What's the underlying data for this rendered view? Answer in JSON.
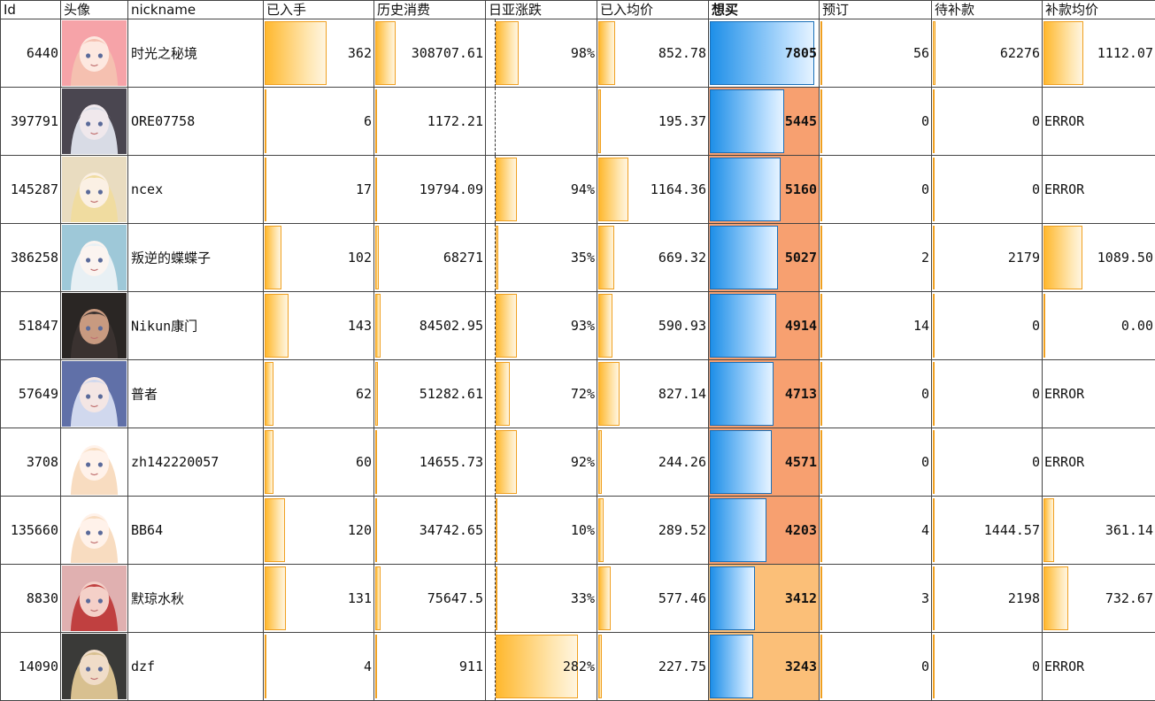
{
  "columns": [
    "Id",
    "头像",
    "nickname",
    "已入手",
    "历史消费",
    "日亚涨跌",
    "已入均价",
    "想买",
    "预订",
    "待补款",
    "补款均价"
  ],
  "rows": [
    {
      "id": "6440",
      "nickname": "时光之秘境",
      "owned": "362",
      "owned_pct": 0.58,
      "history": "308707.61",
      "history_pct": 0.2,
      "jpn": "98%",
      "jpn_pct": 0.29,
      "avg": "852.78",
      "avg_pct": 0.17,
      "want": "7805",
      "want_pct": 0.97,
      "want_bg": "#ffffff",
      "pre": "56",
      "pre_pct": 0.02,
      "due": "62276",
      "due_pct": 0.04,
      "davg": "1112.07",
      "davg_pct": 0.37
    },
    {
      "id": "397791",
      "nickname": "ORE07758",
      "owned": "6",
      "owned_pct": 0.01,
      "history": "1172.21",
      "history_pct": 0.01,
      "jpn": "",
      "jpn_pct": 0,
      "avg": "195.37",
      "avg_pct": 0.04,
      "want": "5445",
      "want_pct": 0.69,
      "want_bg": "#f7a070",
      "pre": "0",
      "pre_pct": 0,
      "due": "0",
      "due_pct": 0,
      "davg": "ERROR",
      "davg_pct": 0
    },
    {
      "id": "145287",
      "nickname": "ncex",
      "owned": "17",
      "owned_pct": 0.02,
      "history": "19794.09",
      "history_pct": 0.02,
      "jpn": "94%",
      "jpn_pct": 0.27,
      "avg": "1164.36",
      "avg_pct": 0.29,
      "want": "5160",
      "want_pct": 0.66,
      "want_bg": "#f7a070",
      "pre": "0",
      "pre_pct": 0,
      "due": "0",
      "due_pct": 0,
      "davg": "ERROR",
      "davg_pct": 0
    },
    {
      "id": "386258",
      "nickname": "叛逆的蝶蝶子",
      "owned": "102",
      "owned_pct": 0.17,
      "history": "68271",
      "history_pct": 0.05,
      "jpn": "35%",
      "jpn_pct": 0.1,
      "avg": "669.32",
      "avg_pct": 0.16,
      "want": "5027",
      "want_pct": 0.64,
      "want_bg": "#f7a070",
      "pre": "2",
      "pre_pct": 0,
      "due": "2179",
      "due_pct": 0,
      "davg": "1089.50",
      "davg_pct": 0.36
    },
    {
      "id": "51847",
      "nickname": "Nikun康门",
      "owned": "143",
      "owned_pct": 0.23,
      "history": "84502.95",
      "history_pct": 0.06,
      "jpn": "93%",
      "jpn_pct": 0.27,
      "avg": "590.93",
      "avg_pct": 0.14,
      "want": "4914",
      "want_pct": 0.62,
      "want_bg": "#f7a070",
      "pre": "14",
      "pre_pct": 0.01,
      "due": "0",
      "due_pct": 0,
      "davg": "0.00",
      "davg_pct": 0
    },
    {
      "id": "57649",
      "nickname": "普者",
      "owned": "62",
      "owned_pct": 0.1,
      "history": "51282.61",
      "history_pct": 0.04,
      "jpn": "72%",
      "jpn_pct": 0.21,
      "avg": "827.14",
      "avg_pct": 0.21,
      "want": "4713",
      "want_pct": 0.6,
      "want_bg": "#f7a070",
      "pre": "0",
      "pre_pct": 0,
      "due": "0",
      "due_pct": 0,
      "davg": "ERROR",
      "davg_pct": 0
    },
    {
      "id": "3708",
      "nickname": "zh142220057",
      "owned": "60",
      "owned_pct": 0.1,
      "history": "14655.73",
      "history_pct": 0.01,
      "jpn": "92%",
      "jpn_pct": 0.27,
      "avg": "244.26",
      "avg_pct": 0.05,
      "want": "4571",
      "want_pct": 0.58,
      "want_bg": "#f7a070",
      "pre": "0",
      "pre_pct": 0,
      "due": "0",
      "due_pct": 0,
      "davg": "ERROR",
      "davg_pct": 0
    },
    {
      "id": "135660",
      "nickname": "BB64",
      "owned": "120",
      "owned_pct": 0.2,
      "history": "34742.65",
      "history_pct": 0.03,
      "jpn": "10%",
      "jpn_pct": 0.02,
      "avg": "289.52",
      "avg_pct": 0.06,
      "want": "4203",
      "want_pct": 0.53,
      "want_bg": "#f7a070",
      "pre": "4",
      "pre_pct": 0,
      "due": "1444.57",
      "due_pct": 0,
      "davg": "361.14",
      "davg_pct": 0.11
    },
    {
      "id": "8830",
      "nickname": "默琼水秋",
      "owned": "131",
      "owned_pct": 0.21,
      "history": "75647.5",
      "history_pct": 0.06,
      "jpn": "33%",
      "jpn_pct": 0.09,
      "avg": "577.46",
      "avg_pct": 0.13,
      "want": "3412",
      "want_pct": 0.43,
      "want_bg": "#fbbf78",
      "pre": "3",
      "pre_pct": 0,
      "due": "2198",
      "due_pct": 0,
      "davg": "732.67",
      "davg_pct": 0.24
    },
    {
      "id": "14090",
      "nickname": "dzf",
      "owned": "4",
      "owned_pct": 0.01,
      "history": "911",
      "history_pct": 0.01,
      "jpn": "282%",
      "jpn_pct": 0.82,
      "avg": "227.75",
      "avg_pct": 0.05,
      "want": "3243",
      "want_pct": 0.41,
      "want_bg": "#fbbf78",
      "pre": "0",
      "pre_pct": 0,
      "due": "0",
      "due_pct": 0,
      "davg": "ERROR",
      "davg_pct": 0
    }
  ],
  "avatars": [
    {
      "icon": "avatar-anime-pink-icon",
      "bg": "#f6a3a8",
      "hair": "#f5c0b0",
      "face": "#fde8e0"
    },
    {
      "icon": "avatar-anime-silver-icon",
      "bg": "#4a4650",
      "hair": "#d8dbe5",
      "face": "#f0e8ec"
    },
    {
      "icon": "avatar-anime-blonde-icon",
      "bg": "#e9dcc0",
      "hair": "#f0dca0",
      "face": "#fbf0e4"
    },
    {
      "icon": "avatar-anime-white-icon",
      "bg": "#9ec8d8",
      "hair": "#e8f0f4",
      "face": "#fbf4f0"
    },
    {
      "icon": "avatar-photo-person-icon",
      "bg": "#2a2624",
      "hair": "#3a3230",
      "face": "#c89a80"
    },
    {
      "icon": "avatar-anime-blue-icon",
      "bg": "#6070a8",
      "hair": "#d0d8ee",
      "face": "#f4e6e4"
    },
    {
      "icon": "avatar-chibi-cream-icon",
      "bg": "#ffffff",
      "hair": "#f8dcc0",
      "face": "#fff2ea"
    },
    {
      "icon": "avatar-chibi-cream-icon",
      "bg": "#ffffff",
      "hair": "#f8dcc0",
      "face": "#fff2ea"
    },
    {
      "icon": "avatar-anime-red-icon",
      "bg": "#e0b0b0",
      "hair": "#c04040",
      "face": "#f4d0c8"
    },
    {
      "icon": "avatar-doll-figure-icon",
      "bg": "#3a3a38",
      "hair": "#d8c090",
      "face": "#f0dcc8"
    }
  ]
}
